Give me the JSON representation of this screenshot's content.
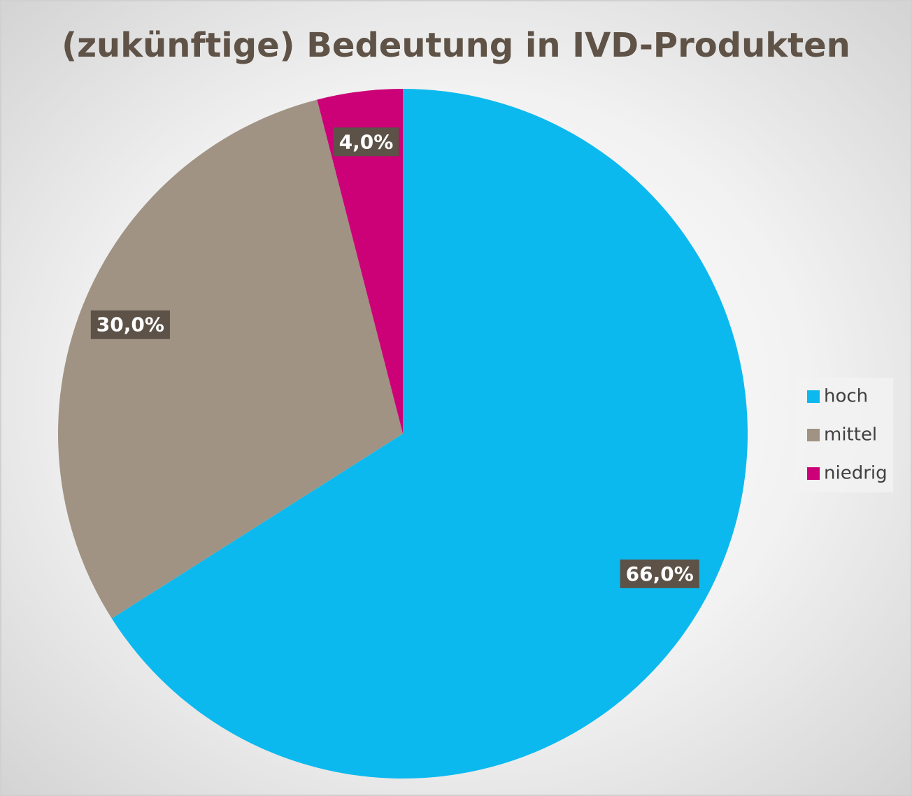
{
  "chart_data": {
    "type": "pie",
    "title": "(zukünftige) Bedeutung in IVD-Produkten",
    "categories": [
      "hoch",
      "mittel",
      "niedrig"
    ],
    "values": [
      66,
      30,
      4
    ],
    "value_labels": [
      "66,0%",
      "30,0%",
      "4,0%"
    ],
    "colors": [
      "#0cb9ee",
      "#a09383",
      "#cc0077"
    ],
    "legend": "right"
  }
}
